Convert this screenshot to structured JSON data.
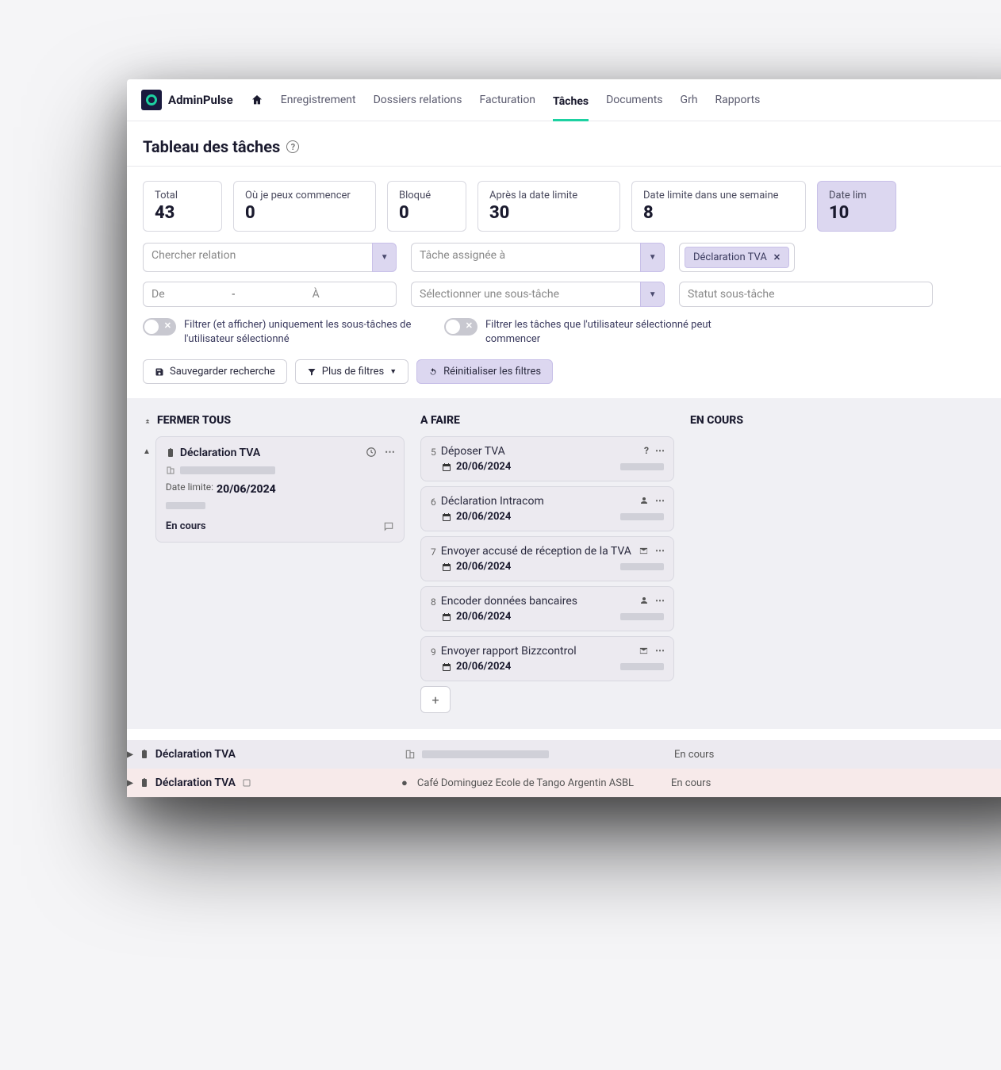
{
  "brand": "AdminPulse",
  "nav": {
    "items": [
      "Enregistrement",
      "Dossiers relations",
      "Facturation",
      "Tâches",
      "Documents",
      "Grh",
      "Rapports"
    ],
    "active_index": 3
  },
  "page": {
    "title": "Tableau des tâches"
  },
  "stats": [
    {
      "label": "Total",
      "value": "43"
    },
    {
      "label": "Où je peux commencer",
      "value": "0"
    },
    {
      "label": "Bloqué",
      "value": "0"
    },
    {
      "label": "Après la date limite",
      "value": "30"
    },
    {
      "label": "Date limite dans une semaine",
      "value": "8"
    },
    {
      "label": "Date lim",
      "value": "10"
    }
  ],
  "filters": {
    "relation_placeholder": "Chercher relation",
    "assignee_placeholder": "Tâche assignée à",
    "date_from": "De",
    "date_to": "À",
    "subtask_placeholder": "Sélectionner une sous-tâche",
    "subtask_status_placeholder": "Statut sous-tâche",
    "tag": "Déclaration TVA",
    "toggle1": "Filtrer (et afficher) uniquement les sous-tâches de l'utilisateur sélectionné",
    "toggle2": "Filtrer les tâches que l'utilisateur sélectionné peut commencer",
    "save_btn": "Sauvegarder recherche",
    "more_btn": "Plus de filtres",
    "reset_btn": "Réinitialiser les filtres"
  },
  "board": {
    "close_all": "FERMER TOUS",
    "todo": "A FAIRE",
    "in_progress": "EN COURS",
    "task": {
      "title": "Déclaration TVA",
      "deadline_label": "Date limite:",
      "deadline": "20/06/2024",
      "status": "En cours"
    },
    "subtasks": [
      {
        "num": "5",
        "title": "Déposer TVA",
        "date": "20/06/2024",
        "icon": "?"
      },
      {
        "num": "6",
        "title": "Déclaration Intracom",
        "date": "20/06/2024",
        "icon": "user"
      },
      {
        "num": "7",
        "title": "Envoyer accusé de réception de la TVA",
        "date": "20/06/2024",
        "icon": "mail"
      },
      {
        "num": "8",
        "title": "Encoder données bancaires",
        "date": "20/06/2024",
        "icon": "user"
      },
      {
        "num": "9",
        "title": "Envoyer rapport Bizzcontrol",
        "date": "20/06/2024",
        "icon": "mail"
      }
    ],
    "row2": {
      "title": "Déclaration TVA",
      "status": "En cours"
    },
    "row3": {
      "title": "Déclaration TVA",
      "company": "Café Dominguez Ecole de Tango Argentin ASBL",
      "status": "En cours"
    }
  },
  "colors": {
    "accent": "#1dd1a1",
    "lavender": "#dcd7f0",
    "text": "#1a1a2e"
  }
}
